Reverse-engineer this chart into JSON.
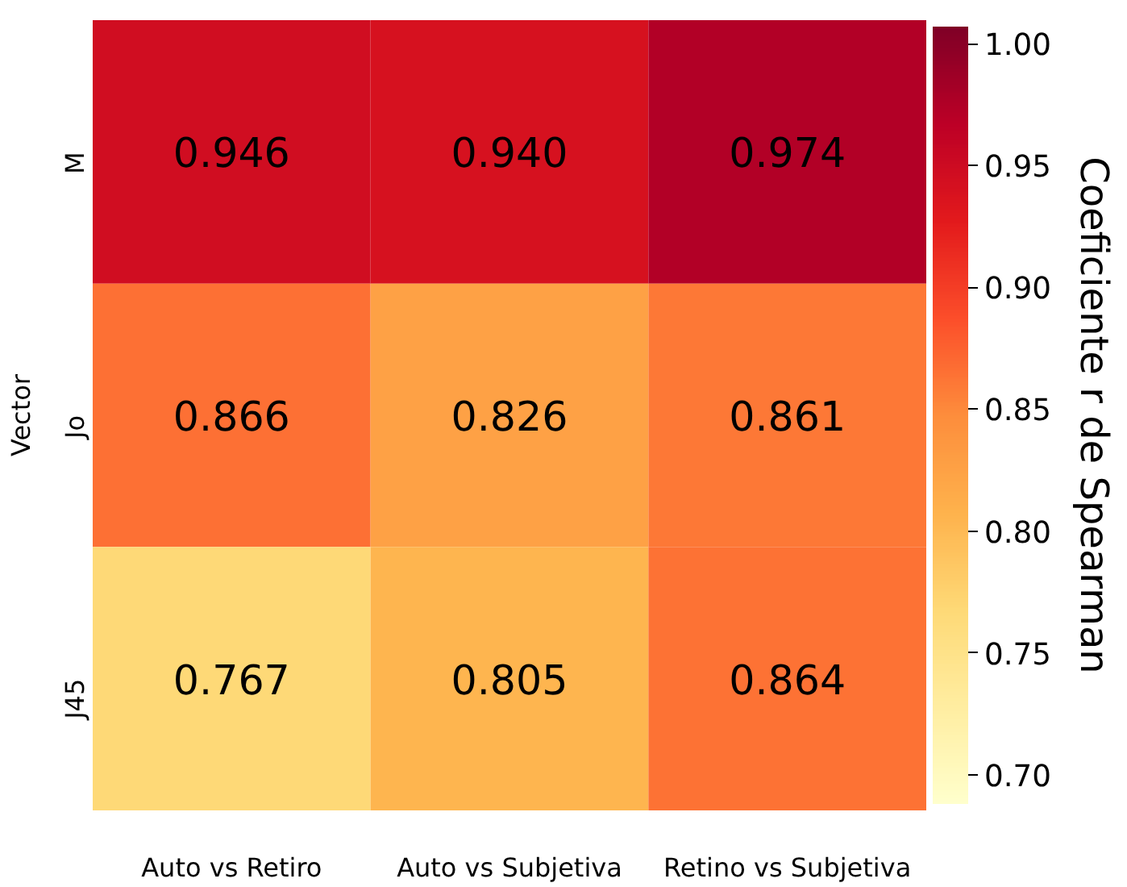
{
  "chart_data": {
    "type": "heatmap",
    "ylabel": "Vector",
    "clabel": "Coeficiente r de Spearman",
    "categories": [
      "Auto vs Retiro",
      "Auto vs Subjetiva",
      "Retino vs Subjetiva"
    ],
    "y_categories": [
      "M",
      "Jo",
      "J45"
    ],
    "cells": [
      [
        0.946,
        0.94,
        0.974
      ],
      [
        0.866,
        0.826,
        0.861
      ],
      [
        0.767,
        0.805,
        0.864
      ]
    ],
    "cell_labels": [
      [
        "0.946",
        "0.940",
        "0.974"
      ],
      [
        "0.866",
        "0.826",
        "0.861"
      ],
      [
        "0.767",
        "0.805",
        "0.864"
      ]
    ],
    "clim": [
      0.688,
      1.007
    ],
    "cticks": [
      {
        "value": 0.7,
        "label": "0.70"
      },
      {
        "value": 0.75,
        "label": "0.75"
      },
      {
        "value": 0.8,
        "label": "0.80"
      },
      {
        "value": 0.85,
        "label": "0.85"
      },
      {
        "value": 0.9,
        "label": "0.90"
      },
      {
        "value": 0.95,
        "label": "0.95"
      },
      {
        "value": 1.0,
        "label": "1.00"
      }
    ]
  }
}
